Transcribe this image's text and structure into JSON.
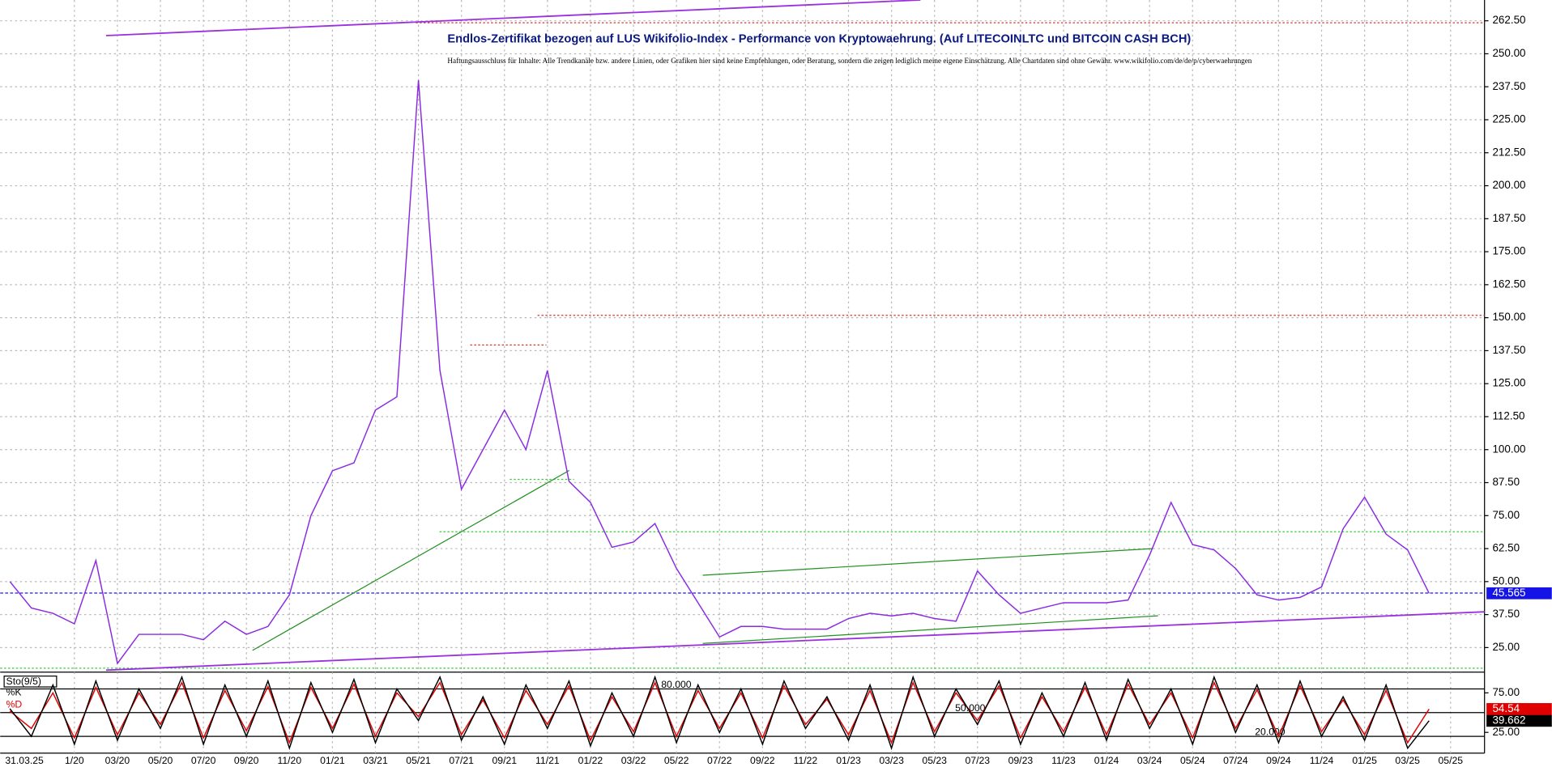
{
  "date_label": "31.03.25",
  "chart_data": [
    {
      "type": "line",
      "title": "Endlos-Zertifikat bezogen auf LUS Wikifolio-Index - Performance von Kryptowaehrung. (Auf LITECOINLTC und BITCOIN CASH BCH)",
      "subtitle": "Haftungsausschluss für Inhalte: Alle Trendkanäle bzw. andere Linien, oder Grafiken hier sind keine Empfehlungen, oder Beratung, sondern die zeigen lediglich meine eigene Einschätzung. Alle Chartdaten sind ohne Gewähr. www.wikifolio.com/de/de/p/cyberwaehrungen",
      "categories": [
        null,
        null,
        null,
        "1/20",
        null,
        "03/20",
        null,
        "05/20",
        null,
        "07/20",
        null,
        "09/20",
        null,
        "11/20",
        null,
        "01/21",
        null,
        "03/21",
        null,
        "05/21",
        null,
        "07/21",
        null,
        "09/21",
        null,
        "11/21",
        null,
        "01/22",
        null,
        "03/22",
        null,
        "05/22",
        null,
        "07/22",
        null,
        "09/22",
        null,
        "11/22",
        null,
        "01/23",
        null,
        "03/23",
        null,
        "05/23",
        null,
        "07/23",
        null,
        "09/23",
        null,
        "11/23",
        null,
        "01/24",
        null,
        "03/24",
        null,
        "05/24",
        null,
        "07/24",
        null,
        "09/24",
        null,
        "11/24",
        null,
        "01/25",
        null,
        "03/25",
        null,
        "05/25"
      ],
      "values": [
        50,
        40,
        38,
        34,
        58,
        19,
        30,
        30,
        30,
        28,
        35,
        30,
        33,
        45,
        75,
        92,
        95,
        115,
        120,
        240,
        130,
        85,
        100,
        115,
        100,
        130,
        88,
        80,
        63,
        65,
        72,
        55,
        42,
        29,
        33,
        33,
        32,
        32,
        32,
        36,
        38,
        37,
        38,
        36,
        35,
        54,
        45,
        38,
        40,
        42,
        42,
        42,
        43,
        60,
        80,
        64,
        62,
        55,
        45,
        43,
        44,
        48,
        70,
        82,
        68,
        62,
        45.565,
        null
      ],
      "color": "#8a2be2",
      "ylim": [
        15.7,
        268.5
      ],
      "yticks": [
        {
          "value": 25,
          "label": "25.00"
        },
        {
          "value": 37.5,
          "label": "37.50"
        },
        {
          "value": 50,
          "label": "50.00"
        },
        {
          "value": 62.5,
          "label": "62.50"
        },
        {
          "value": 75,
          "label": "75.00"
        },
        {
          "value": 87.5,
          "label": "87.50"
        },
        {
          "value": 100,
          "label": "100.00"
        },
        {
          "value": 112.5,
          "label": "112.50"
        },
        {
          "value": 125,
          "label": "125.00"
        },
        {
          "value": 137.5,
          "label": "137.50"
        },
        {
          "value": 150,
          "label": "150.00"
        },
        {
          "value": 162.5,
          "label": "162.50"
        },
        {
          "value": 175,
          "label": "175.00"
        },
        {
          "value": 187.5,
          "label": "187.50"
        },
        {
          "value": 200,
          "label": "200.00"
        },
        {
          "value": 212.5,
          "label": "212.50"
        },
        {
          "value": 225,
          "label": "225.00"
        },
        {
          "value": 237.5,
          "label": "237.50"
        },
        {
          "value": 250,
          "label": "250.00"
        },
        {
          "value": 262.5,
          "label": "262.50"
        }
      ],
      "grid": true
    },
    {
      "type": "line",
      "legend_title": "Sto(9/5)",
      "series": [
        {
          "name": "%K",
          "color": "#000000",
          "values": [
            55,
            20,
            85,
            10,
            90,
            15,
            80,
            30,
            95,
            10,
            85,
            20,
            90,
            5,
            88,
            25,
            92,
            12,
            80,
            40,
            95,
            15,
            70,
            10,
            85,
            30,
            90,
            8,
            75,
            20,
            95,
            12,
            85,
            25,
            80,
            10,
            90,
            30,
            70,
            15,
            85,
            5,
            95,
            20,
            80,
            35,
            90,
            10,
            75,
            20,
            88,
            15,
            92,
            30,
            80,
            10,
            95,
            25,
            85,
            12,
            90,
            20,
            70,
            15,
            85,
            5,
            39.662,
            null
          ]
        },
        {
          "name": "%D",
          "color": "#e00000",
          "values": [
            52,
            30,
            75,
            18,
            82,
            22,
            75,
            35,
            88,
            18,
            78,
            27,
            83,
            12,
            82,
            30,
            86,
            20,
            75,
            45,
            88,
            22,
            66,
            18,
            78,
            35,
            84,
            15,
            70,
            26,
            88,
            20,
            78,
            30,
            75,
            18,
            84,
            35,
            67,
            22,
            78,
            12,
            88,
            26,
            75,
            40,
            84,
            18,
            70,
            26,
            82,
            22,
            86,
            35,
            75,
            18,
            88,
            30,
            79,
            20,
            84,
            26,
            66,
            22,
            78,
            12,
            54.54,
            null
          ]
        }
      ],
      "ylim": [
        -1.3,
        97.5
      ],
      "yticks": [
        {
          "value": 25,
          "label": "25.00"
        },
        {
          "value": 75,
          "label": "75.00"
        }
      ],
      "levels": [
        {
          "value": 80,
          "label": "80.000"
        },
        {
          "value": 50,
          "label": "50.000"
        },
        {
          "value": 20,
          "label": "20.000"
        }
      ]
    }
  ]
}
